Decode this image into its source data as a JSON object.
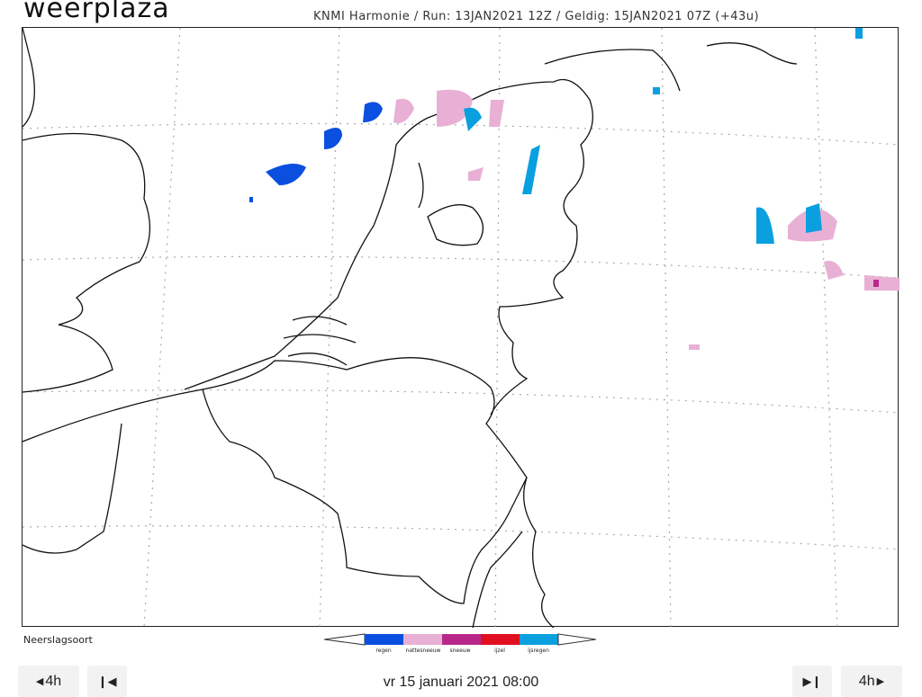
{
  "brand": "weerplaza",
  "run_info": "KNMI Harmonie / Run: 13JAN2021 12Z / Geldig: 15JAN2021 07Z (+43u)",
  "legend": {
    "title": "Neerslagsoort",
    "items": [
      {
        "label": "regen",
        "color": "#0a4fe0"
      },
      {
        "label": "nattesneeuw",
        "color": "#e8b0d4"
      },
      {
        "label": "sneeuw",
        "color": "#b8288a"
      },
      {
        "label": "ijzel",
        "color": "#e01020"
      },
      {
        "label": "ijsregen",
        "color": "#0aa0e0"
      }
    ]
  },
  "controls": {
    "back_step": "4h",
    "forward_step": "4h",
    "current_time": "vr 15 januari 2021 08:00"
  }
}
